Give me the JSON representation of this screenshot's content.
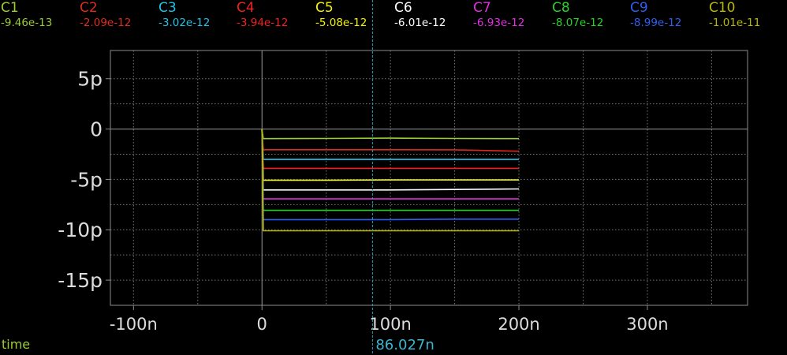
{
  "colors": {
    "background": "#000000",
    "frame": "#8c8c8c",
    "grid": "#7a7a7a",
    "cursor": "#2aa6bd",
    "tick_text": "#dcdcdc"
  },
  "x_label": "time",
  "cursor": {
    "label": "86.027n",
    "x": 86.027,
    "color": "#3ab6d0"
  },
  "chart_data": {
    "type": "line",
    "xlabel": "time",
    "ylabel": "",
    "xlim": [
      -118,
      378
    ],
    "ylim": [
      -17.5,
      7.8
    ],
    "x_ticks": [
      -100,
      0,
      100,
      200,
      300
    ],
    "x_tick_labels": [
      "-100n",
      "0",
      "100n",
      "200n",
      "300n"
    ],
    "y_ticks": [
      5,
      0,
      -5,
      -10,
      -15
    ],
    "y_tick_labels": [
      "5p",
      "0",
      "-5p",
      "-10p",
      "-15p"
    ],
    "x_grid_minor": [
      -50,
      50,
      150,
      250,
      350
    ],
    "y_grid_minor": [
      2.5,
      -2.5,
      -7.5,
      -12.5
    ],
    "grid": true,
    "legend_placement": "top",
    "x": [
      0,
      1,
      5,
      50,
      100,
      150,
      200
    ],
    "series": [
      {
        "name": "C1",
        "legend_value": "-9.46e-13",
        "color": "#9acd32",
        "values": [
          0,
          -0.95,
          -0.95,
          -0.93,
          -0.9,
          -0.93,
          -0.95
        ]
      },
      {
        "name": "C2",
        "legend_value": "-2.09e-12",
        "color": "#e02a1a",
        "values": [
          0,
          -2.05,
          -2.05,
          -2.05,
          -2.05,
          -2.06,
          -2.2
        ]
      },
      {
        "name": "C3",
        "legend_value": "-3.02e-12",
        "color": "#1ec2e8",
        "values": [
          0,
          -3.02,
          -3.02,
          -3.02,
          -3.02,
          -3.02,
          -3.02
        ]
      },
      {
        "name": "C4",
        "legend_value": "-3.94e-12",
        "color": "#f22020",
        "values": [
          0,
          -3.9,
          -3.9,
          -3.9,
          -3.9,
          -3.9,
          -3.9
        ]
      },
      {
        "name": "C5",
        "legend_value": "-5.08e-12",
        "color": "#f2f200",
        "values": [
          0,
          -5.08,
          -5.08,
          -5.08,
          -5.05,
          -5.05,
          -5.05
        ]
      },
      {
        "name": "C6",
        "legend_value": "-6.01e-12",
        "color": "#ffffff",
        "values": [
          0,
          -6.05,
          -6.05,
          -6.05,
          -6.05,
          -6.0,
          -5.95
        ]
      },
      {
        "name": "C7",
        "legend_value": "-6.93e-12",
        "color": "#e22ee2",
        "values": [
          0,
          -6.93,
          -6.93,
          -6.93,
          -6.93,
          -6.93,
          -6.93
        ]
      },
      {
        "name": "C8",
        "legend_value": "-8.07e-12",
        "color": "#28d228",
        "values": [
          0,
          -8.07,
          -8.07,
          -8.07,
          -8.07,
          -8.07,
          -8.07
        ]
      },
      {
        "name": "C9",
        "legend_value": "-8.99e-12",
        "color": "#2f5ff2",
        "values": [
          0,
          -8.99,
          -8.99,
          -8.99,
          -8.99,
          -8.95,
          -8.95
        ]
      },
      {
        "name": "C10",
        "legend_value": "-1.01e-11",
        "color": "#b8b800",
        "values": [
          0,
          -10.1,
          -10.1,
          -10.1,
          -10.1,
          -10.1,
          -10.1
        ]
      }
    ]
  }
}
